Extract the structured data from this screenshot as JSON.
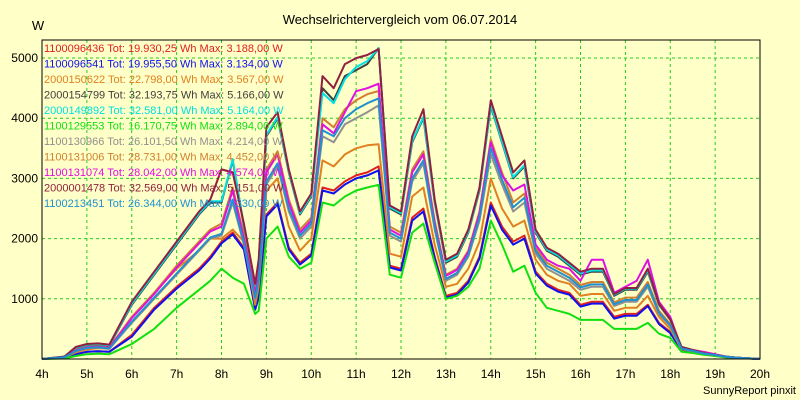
{
  "chart_data": {
    "type": "line",
    "title": "Wechselrichtervergleich vom 06.07.2014",
    "ylabel": "W",
    "footer": "SunnyReport pinxit",
    "grid": true,
    "legend_position": "top-left",
    "x_ticks": [
      "4h",
      "5h",
      "6h",
      "7h",
      "8h",
      "9h",
      "10h",
      "11h",
      "12h",
      "13h",
      "14h",
      "15h",
      "16h",
      "17h",
      "18h",
      "19h",
      "20h"
    ],
    "y_ticks": [
      1000,
      2000,
      3000,
      4000,
      5000
    ],
    "xlim": [
      4,
      20
    ],
    "ylim": [
      0,
      5300
    ],
    "x": [
      4.0,
      4.5,
      4.75,
      5.0,
      5.25,
      5.5,
      6.0,
      6.5,
      7.0,
      7.5,
      7.75,
      8.0,
      8.25,
      8.5,
      8.75,
      8.83,
      9.0,
      9.25,
      9.5,
      9.75,
      10.0,
      10.25,
      10.5,
      10.75,
      11.0,
      11.25,
      11.5,
      11.75,
      12.0,
      12.25,
      12.5,
      12.75,
      13.0,
      13.25,
      13.5,
      13.75,
      14.0,
      14.25,
      14.5,
      14.75,
      15.0,
      15.25,
      15.5,
      15.75,
      16.0,
      16.25,
      16.5,
      16.75,
      17.0,
      17.25,
      17.5,
      17.75,
      18.0,
      18.25,
      18.5,
      18.75,
      19.0,
      19.25,
      19.5,
      20.0
    ],
    "series": [
      {
        "name": "1100096436 Tot: 19.930,25 Wh Max: 3.188,00 W",
        "color": "#e02020",
        "values": [
          0,
          20,
          80,
          120,
          130,
          120,
          400,
          850,
          1200,
          1500,
          1700,
          1950,
          2100,
          1850,
          850,
          1050,
          2400,
          2600,
          1850,
          1600,
          1750,
          2850,
          2800,
          2950,
          3050,
          3100,
          3200,
          1550,
          1500,
          2350,
          2500,
          1700,
          1050,
          1100,
          1300,
          1700,
          2600,
          2200,
          1950,
          2050,
          1450,
          1250,
          1150,
          1100,
          900,
          950,
          950,
          700,
          750,
          750,
          900,
          600,
          450,
          150,
          120,
          80,
          60,
          30,
          20,
          0
        ]
      },
      {
        "name": "1100096541 Tot: 19.955,50 Wh Max: 3.134,00 W",
        "color": "#1010ee",
        "values": [
          0,
          20,
          80,
          120,
          130,
          120,
          370,
          820,
          1170,
          1470,
          1670,
          1920,
          2070,
          1820,
          820,
          1020,
          2370,
          2570,
          1820,
          1570,
          1720,
          2800,
          2750,
          2900,
          3000,
          3050,
          3134,
          1520,
          1470,
          2300,
          2450,
          1670,
          1020,
          1070,
          1270,
          1670,
          2550,
          2150,
          1900,
          2000,
          1420,
          1220,
          1120,
          1070,
          870,
          920,
          920,
          670,
          720,
          720,
          880,
          580,
          430,
          140,
          110,
          75,
          55,
          30,
          20,
          0
        ]
      },
      {
        "name": "2000150622 Tot: 22.798,00 Wh Max: 3.567,00 W",
        "color": "#e08020",
        "values": [
          0,
          30,
          110,
          160,
          180,
          170,
          700,
          1100,
          1500,
          1800,
          2000,
          2000,
          2150,
          1950,
          900,
          1200,
          2800,
          3000,
          2200,
          1800,
          2000,
          3300,
          3200,
          3400,
          3500,
          3550,
          3567,
          1750,
          1700,
          2700,
          2850,
          1900,
          1200,
          1250,
          1500,
          1950,
          3000,
          2500,
          2200,
          2300,
          1650,
          1400,
          1300,
          1250,
          1050,
          1080,
          1080,
          800,
          850,
          850,
          1050,
          700,
          500,
          160,
          130,
          90,
          65,
          35,
          20,
          0
        ]
      },
      {
        "name": "2000154799 Tot: 32.193,75 Wh Max: 5.166,00 W",
        "color": "#404040",
        "values": [
          0,
          40,
          180,
          230,
          240,
          220,
          900,
          1400,
          1900,
          2400,
          2600,
          2600,
          3300,
          2200,
          1200,
          1600,
          3700,
          4000,
          3100,
          2400,
          2700,
          4500,
          4300,
          4700,
          4800,
          4900,
          5166,
          2500,
          2400,
          3600,
          4000,
          2600,
          1600,
          1700,
          2100,
          2800,
          4200,
          3600,
          3000,
          3200,
          2100,
          1800,
          1700,
          1550,
          1400,
          1450,
          1450,
          1050,
          1150,
          1150,
          1450,
          900,
          650,
          200,
          150,
          100,
          70,
          40,
          20,
          0
        ]
      },
      {
        "name": "2000149892 Tot: 32.581,00 Wh Max: 5.164,00 W",
        "color": "#00e0e0",
        "values": [
          0,
          40,
          190,
          240,
          250,
          230,
          920,
          1420,
          1920,
          2420,
          2620,
          2620,
          3320,
          2220,
          1220,
          1620,
          3720,
          4020,
          3120,
          2420,
          2720,
          4420,
          4250,
          4650,
          4850,
          4950,
          5164,
          2520,
          2420,
          3620,
          4020,
          2620,
          1620,
          1720,
          2120,
          2820,
          4220,
          3620,
          3020,
          3220,
          2120,
          1820,
          1720,
          1570,
          1420,
          1470,
          1470,
          1070,
          1170,
          1170,
          1470,
          920,
          660,
          200,
          150,
          100,
          70,
          40,
          20,
          0
        ]
      },
      {
        "name": "1100129553 Tot: 16.170,75 Wh Max: 2.894,00 W",
        "color": "#10e010",
        "values": [
          0,
          10,
          50,
          80,
          90,
          80,
          250,
          500,
          850,
          1150,
          1300,
          1500,
          1350,
          1250,
          750,
          800,
          2000,
          2200,
          1700,
          1500,
          1600,
          2600,
          2550,
          2700,
          2800,
          2850,
          2894,
          1400,
          1350,
          2100,
          2250,
          1600,
          1000,
          1050,
          1200,
          1500,
          2300,
          1900,
          1450,
          1550,
          1100,
          850,
          800,
          750,
          650,
          650,
          650,
          500,
          500,
          500,
          600,
          420,
          350,
          120,
          100,
          70,
          50,
          25,
          15,
          0
        ]
      },
      {
        "name": "1100130966 Tot: 26.101,50 Wh Max: 4.214,00 W",
        "color": "#909090",
        "values": [
          0,
          30,
          130,
          180,
          190,
          170,
          600,
          1000,
          1400,
          1800,
          2000,
          2050,
          2600,
          1900,
          1000,
          1300,
          2900,
          3200,
          2450,
          2000,
          2200,
          3700,
          3600,
          3900,
          4000,
          4100,
          4214,
          2050,
          1950,
          2950,
          3250,
          2150,
          1300,
          1400,
          1700,
          2300,
          3400,
          2900,
          2450,
          2600,
          1750,
          1500,
          1400,
          1300,
          1150,
          1200,
          1200,
          880,
          950,
          950,
          1200,
          750,
          550,
          170,
          130,
          90,
          65,
          35,
          20,
          0
        ]
      },
      {
        "name": "1100131006 Tot: 28.731,00 Wh Max: 4.452,00 W",
        "color": "#d08030",
        "values": [
          0,
          35,
          150,
          200,
          210,
          190,
          700,
          1100,
          1550,
          1950,
          2150,
          2250,
          2850,
          2050,
          1100,
          1400,
          3150,
          3450,
          2650,
          2150,
          2350,
          4000,
          3850,
          4150,
          4300,
          4400,
          4452,
          2200,
          2100,
          3150,
          3450,
          2300,
          1400,
          1500,
          1800,
          2450,
          3650,
          3100,
          2600,
          2750,
          1850,
          1600,
          1500,
          1400,
          1230,
          1280,
          1280,
          940,
          1020,
          1020,
          1280,
          800,
          580,
          180,
          140,
          95,
          68,
          38,
          20,
          0
        ]
      },
      {
        "name": "1100131074 Tot: 28.042,00 Wh Max: 4.574,00 W",
        "color": "#e010e0",
        "values": [
          0,
          35,
          145,
          195,
          205,
          185,
          680,
          1080,
          1520,
          1920,
          2120,
          2200,
          2800,
          2000,
          1080,
          1380,
          3100,
          3400,
          2600,
          2100,
          2300,
          3900,
          3750,
          4100,
          4450,
          4500,
          4574,
          2150,
          2050,
          3100,
          3400,
          2250,
          1380,
          1480,
          1780,
          2420,
          3600,
          3050,
          2800,
          2900,
          1900,
          1650,
          1550,
          1500,
          1300,
          1650,
          1650,
          1100,
          1200,
          1300,
          1650,
          950,
          700,
          180,
          150,
          120,
          80,
          40,
          20,
          0
        ]
      },
      {
        "name": "2000001478 Tot: 32.569,00 Wh Max: 5.151,00 W",
        "color": "#902040",
        "values": [
          0,
          40,
          200,
          250,
          260,
          240,
          950,
          1450,
          1950,
          2450,
          2650,
          3150,
          3100,
          2250,
          1250,
          1650,
          3850,
          4100,
          3150,
          2450,
          2750,
          4700,
          4500,
          4900,
          5000,
          5050,
          5151,
          2550,
          2450,
          3700,
          4150,
          2650,
          1650,
          1750,
          2150,
          2850,
          4300,
          3700,
          3100,
          3300,
          2150,
          1850,
          1750,
          1600,
          1450,
          1500,
          1500,
          1080,
          1180,
          1180,
          1500,
          920,
          660,
          200,
          150,
          100,
          70,
          40,
          20,
          0
        ]
      },
      {
        "name": "1100213451 Tot: 26.344,00 Wh Max: 4.330,00 W",
        "color": "#2090d0",
        "values": [
          0,
          30,
          135,
          185,
          195,
          175,
          620,
          1020,
          1420,
          1820,
          2020,
          2080,
          2650,
          1930,
          1020,
          1320,
          2950,
          3250,
          2500,
          2050,
          2250,
          3800,
          3700,
          4000,
          4150,
          4250,
          4330,
          2100,
          2000,
          3000,
          3300,
          2200,
          1330,
          1430,
          1730,
          2350,
          3500,
          2980,
          2520,
          2680,
          1800,
          1550,
          1450,
          1350,
          1190,
          1240,
          1240,
          910,
          980,
          980,
          1240,
          770,
          560,
          175,
          135,
          92,
          66,
          36,
          20,
          0
        ]
      }
    ]
  }
}
